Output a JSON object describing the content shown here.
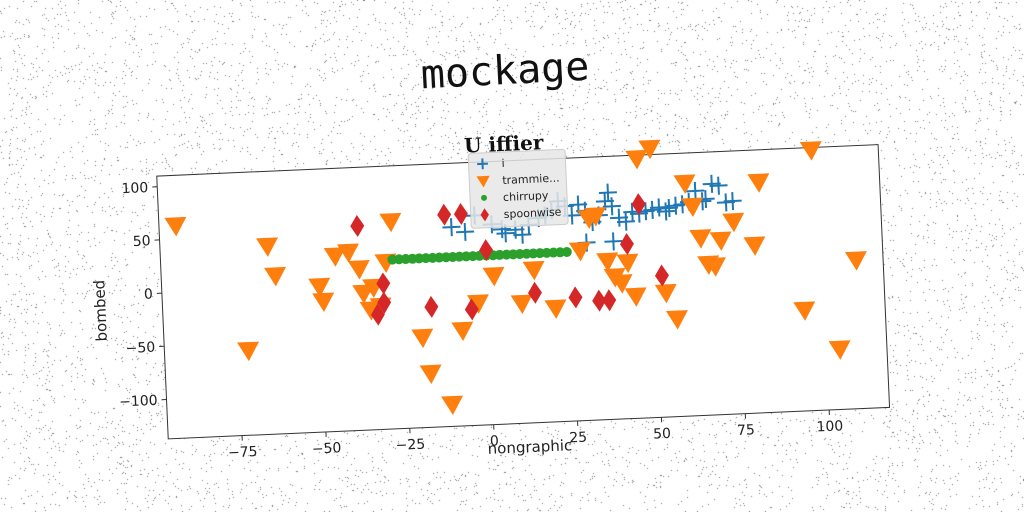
{
  "figure_title": "mockage",
  "chart_data": {
    "type": "scatter",
    "title": "U iffier",
    "xlabel": "nongraphic",
    "ylabel": "bombed",
    "xlim": [
      -97,
      118
    ],
    "ylim": [
      -137,
      110
    ],
    "xticks": [
      -75,
      -50,
      -25,
      0,
      25,
      50,
      75,
      100
    ],
    "yticks": [
      -100,
      -50,
      0,
      50,
      100
    ],
    "grid": false,
    "legend_position": "upper center",
    "series": [
      {
        "name": "i",
        "marker": "plus",
        "color": "#1f77b4",
        "points": [
          [
            -3,
            60
          ],
          [
            2,
            51
          ],
          [
            5,
            46
          ],
          [
            9,
            45
          ],
          [
            11,
            40
          ],
          [
            13,
            49
          ],
          [
            16,
            55
          ],
          [
            18,
            57
          ],
          [
            20,
            62
          ],
          [
            22,
            70
          ],
          [
            24,
            65
          ],
          [
            26,
            56
          ],
          [
            28,
            66
          ],
          [
            30,
            60
          ],
          [
            32,
            49
          ],
          [
            34,
            55
          ],
          [
            36,
            68
          ],
          [
            37,
            76
          ],
          [
            38,
            63
          ],
          [
            40,
            52
          ],
          [
            42,
            48
          ],
          [
            44,
            57
          ],
          [
            46,
            55
          ],
          [
            48,
            57
          ],
          [
            50,
            58
          ],
          [
            52,
            60
          ],
          [
            54,
            56
          ],
          [
            55,
            59
          ],
          [
            57,
            61
          ],
          [
            59,
            62
          ],
          [
            61,
            64
          ],
          [
            63,
            74
          ],
          [
            65,
            64
          ],
          [
            66,
            66
          ],
          [
            68,
            80
          ],
          [
            70,
            78
          ],
          [
            72,
            62
          ],
          [
            74,
            63
          ],
          [
            30,
            30
          ],
          [
            38,
            30
          ],
          [
            -10,
            50
          ],
          [
            -6,
            45
          ],
          [
            6,
            42
          ]
        ]
      },
      {
        "name": "trammie...",
        "marker": "triangle-down",
        "color": "#ff7f0e",
        "points": [
          [
            -92,
            63
          ],
          [
            -72,
            -57
          ],
          [
            -65,
            40
          ],
          [
            -63,
            12
          ],
          [
            -50,
            0
          ],
          [
            -49,
            -14
          ],
          [
            -45,
            28
          ],
          [
            -41,
            31
          ],
          [
            -38,
            15
          ],
          [
            -37,
            -8
          ],
          [
            -35,
            -24
          ],
          [
            -34,
            -3
          ],
          [
            -32,
            -21
          ],
          [
            -30,
            20
          ],
          [
            -28,
            58
          ],
          [
            -20,
            -52
          ],
          [
            -18,
            -86
          ],
          [
            -12,
            -116
          ],
          [
            -8,
            -47
          ],
          [
            -3,
            -22
          ],
          [
            2,
            3
          ],
          [
            10,
            -24
          ],
          [
            14,
            7
          ],
          [
            20,
            -30
          ],
          [
            28,
            23
          ],
          [
            31,
            53
          ],
          [
            33,
            55
          ],
          [
            36,
            12
          ],
          [
            38,
            -3
          ],
          [
            40,
            -9
          ],
          [
            42,
            10
          ],
          [
            44,
            -22
          ],
          [
            46,
            107
          ],
          [
            50,
            116
          ],
          [
            53,
            -20
          ],
          [
            56,
            -45
          ],
          [
            60,
            82
          ],
          [
            62,
            60
          ],
          [
            64,
            30
          ],
          [
            66,
            5
          ],
          [
            68,
            3
          ],
          [
            70,
            27
          ],
          [
            74,
            44
          ],
          [
            80,
            21
          ],
          [
            82,
            80
          ],
          [
            94,
            -42
          ],
          [
            98,
            108
          ],
          [
            104,
            -80
          ],
          [
            110,
            3
          ]
        ]
      },
      {
        "name": "chirrupy",
        "marker": "circle",
        "color": "#2ca02c",
        "points": [
          [
            -28,
            22
          ],
          [
            -26,
            22
          ],
          [
            -24,
            22
          ],
          [
            -22,
            22
          ],
          [
            -20,
            22
          ],
          [
            -18,
            22
          ],
          [
            -16,
            22
          ],
          [
            -14,
            22
          ],
          [
            -12,
            22
          ],
          [
            -10,
            22
          ],
          [
            -8,
            22
          ],
          [
            -6,
            22
          ],
          [
            -4,
            22
          ],
          [
            -2,
            22
          ],
          [
            0,
            22
          ],
          [
            2,
            22
          ],
          [
            4,
            22
          ],
          [
            6,
            22
          ],
          [
            8,
            22
          ],
          [
            10,
            22
          ],
          [
            12,
            22
          ],
          [
            14,
            22
          ],
          [
            16,
            22
          ],
          [
            18,
            22
          ],
          [
            20,
            22
          ],
          [
            22,
            22
          ],
          [
            24,
            22
          ]
        ]
      },
      {
        "name": "spoonwise",
        "marker": "diamond",
        "color": "#d62728",
        "points": [
          [
            -38,
            55
          ],
          [
            -33,
            -29
          ],
          [
            -31,
            0
          ],
          [
            -31,
            -18
          ],
          [
            -17,
            -24
          ],
          [
            -12,
            62
          ],
          [
            -7,
            62
          ],
          [
            -5,
            -28
          ],
          [
            0,
            27
          ],
          [
            14,
            -15
          ],
          [
            26,
            -21
          ],
          [
            33,
            -25
          ],
          [
            36,
            -25
          ],
          [
            42,
            27
          ],
          [
            46,
            64
          ],
          [
            52,
            -4
          ]
        ]
      }
    ]
  }
}
